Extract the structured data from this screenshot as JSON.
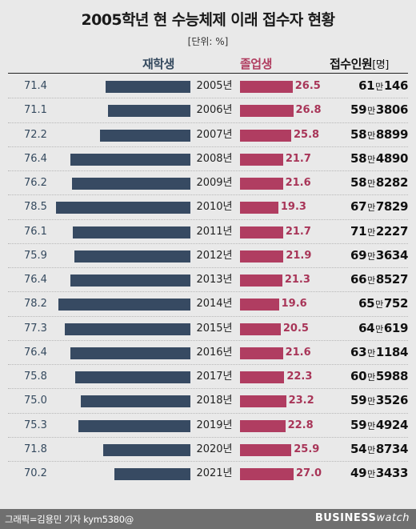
{
  "header": {
    "title": "2005학년 현 수능체제 이래 접수자 현황",
    "unit": "[단위: %]"
  },
  "columns": {
    "attending": "재학생",
    "graduate": "졸업생",
    "applicants": "접수인원",
    "applicants_unit": "[명]"
  },
  "colors": {
    "attending": "#374a62",
    "graduate": "#b03d61"
  },
  "chart_data": {
    "type": "bar",
    "title": "2005학년 현 수능체제 이래 접수자 현황",
    "unit": "[단위: %]",
    "categories": [
      "2005년",
      "2006년",
      "2007년",
      "2008년",
      "2009년",
      "2010년",
      "2011년",
      "2012년",
      "2013년",
      "2014년",
      "2015년",
      "2016년",
      "2017년",
      "2018년",
      "2019년",
      "2020년",
      "2021년"
    ],
    "series": [
      {
        "name": "재학생",
        "values": [
          "71.4",
          "71.1",
          "72.2",
          "76.4",
          "76.2",
          "78.5",
          "76.1",
          "75.9",
          "76.4",
          "78.2",
          "77.3",
          "76.4",
          "75.8",
          "75.0",
          "75.3",
          "71.8",
          "70.2"
        ]
      },
      {
        "name": "졸업생",
        "values": [
          "26.5",
          "26.8",
          "25.8",
          "21.7",
          "21.6",
          "19.3",
          "21.7",
          "21.9",
          "21.3",
          "19.6",
          "20.5",
          "21.6",
          "22.3",
          "23.2",
          "22.8",
          "25.9",
          "27.0"
        ]
      }
    ],
    "applicants": [
      [
        "61",
        "146"
      ],
      [
        "59",
        "3806"
      ],
      [
        "58",
        "8899"
      ],
      [
        "58",
        "4890"
      ],
      [
        "58",
        "8282"
      ],
      [
        "67",
        "7829"
      ],
      [
        "71",
        "2227"
      ],
      [
        "69",
        "3634"
      ],
      [
        "66",
        "8527"
      ],
      [
        "65",
        "752"
      ],
      [
        "64",
        "619"
      ],
      [
        "63",
        "1184"
      ],
      [
        "60",
        "5988"
      ],
      [
        "59",
        "3526"
      ],
      [
        "59",
        "4924"
      ],
      [
        "54",
        "8734"
      ],
      [
        "49",
        "3433"
      ]
    ],
    "applicants_unit_word": "만"
  },
  "footer": {
    "credit": "그래픽=김용민 기자 kym5380@",
    "logo_bold": "BUSINESS",
    "logo_light": "watch"
  }
}
